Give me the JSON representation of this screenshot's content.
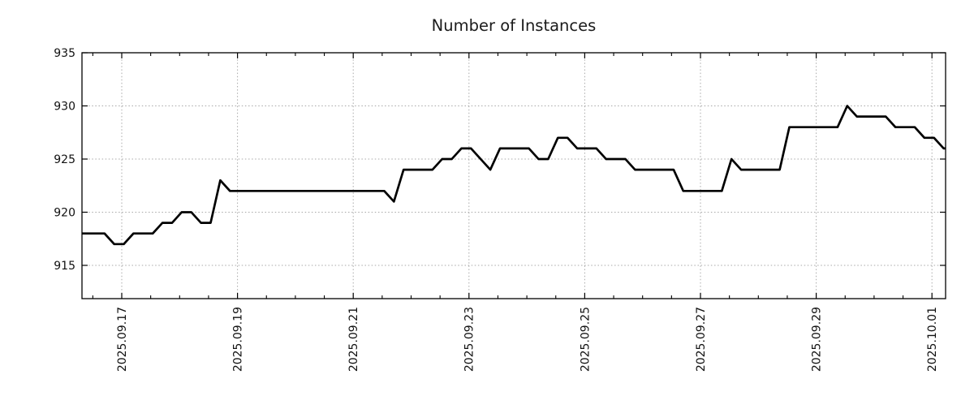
{
  "chart_data": {
    "type": "line",
    "title": "Number of Instances",
    "xlabel": "",
    "ylabel": "",
    "x_tick_labels": [
      "2025.09.17",
      "2025.09.19",
      "2025.09.21",
      "2025.09.23",
      "2025.09.25",
      "2025.09.27",
      "2025.09.29",
      "2025.10.01"
    ],
    "x_major_tick_spacing_days": 2,
    "x_minor_tick_spacing_days": 0.5,
    "y_tick_labels": [
      "935",
      "930",
      "925",
      "920",
      "915"
    ],
    "y_ticks": [
      935,
      930,
      925,
      920,
      915
    ],
    "ylim_top": 935,
    "ylim_bottom": 911.9,
    "grid": "dotted",
    "legend": "none",
    "line_color": "#000000",
    "grid_color": "#a8a8a8",
    "frame_color": "#000000",
    "series": [
      {
        "name": "instances",
        "start_day_offset_from_first_tick": -0.631,
        "step_days": 0.1666667,
        "values": [
          918,
          918,
          918,
          917,
          917,
          918,
          918,
          918,
          919,
          919,
          920,
          920,
          919,
          919,
          923,
          922,
          922,
          922,
          922,
          922,
          922,
          922,
          922,
          922,
          922,
          922,
          922,
          922,
          922,
          922,
          922,
          922,
          921,
          924,
          924,
          924,
          924,
          925,
          925,
          926,
          926,
          925,
          924,
          926,
          926,
          926,
          926,
          925,
          925,
          927,
          927,
          926,
          926,
          926,
          925,
          925,
          925,
          924,
          924,
          924,
          924,
          924,
          922,
          922,
          922,
          922,
          922,
          925,
          924,
          924,
          924,
          924,
          924,
          928,
          928,
          928,
          928,
          928,
          928,
          930,
          929,
          929,
          929,
          929,
          928,
          928,
          928,
          927,
          927,
          926
        ]
      }
    ]
  }
}
